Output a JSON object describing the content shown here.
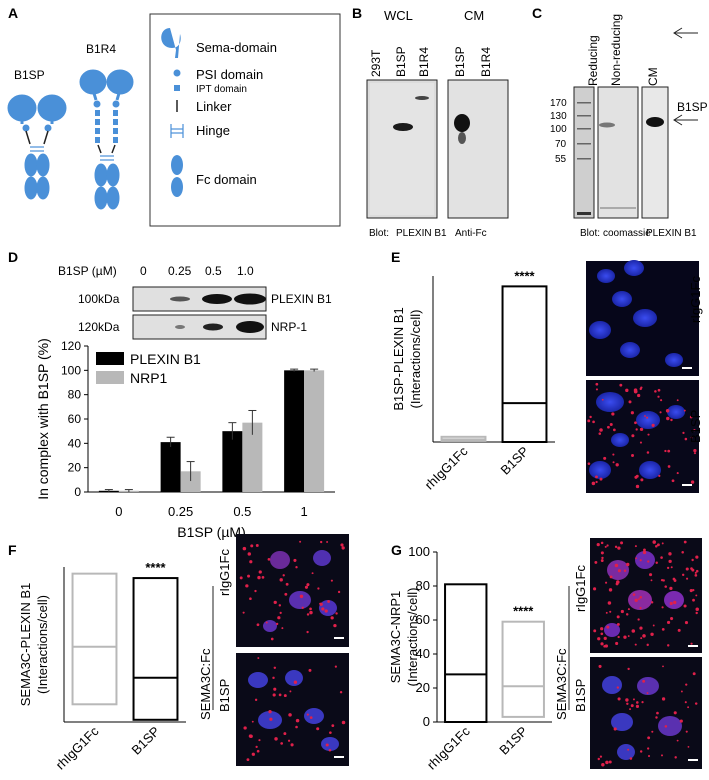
{
  "panel_labels": {
    "a": "A",
    "b": "B",
    "c": "C",
    "d": "D",
    "e": "E",
    "f": "F",
    "g": "G"
  },
  "colors": {
    "protein_blue": "#4a90d8",
    "nucleus_blue": "#2a38d8",
    "pla_red": "#e0204a",
    "black": "#000000",
    "grey": "#b8b8b8"
  },
  "panel_a": {
    "b1sp_label": "B1SP",
    "b1r4_label": "B1R4",
    "legend": [
      {
        "icon": "sema-icon",
        "label": "Sema-domain"
      },
      {
        "icon": "psi-icon",
        "label": "PSI domain"
      },
      {
        "icon": "ipt-icon",
        "label": "IPT domain"
      },
      {
        "icon": "linker-icon",
        "label": "Linker"
      },
      {
        "icon": "hinge-icon",
        "label": "Hinge"
      },
      {
        "icon": "fc-icon",
        "label": "Fc domain"
      }
    ]
  },
  "panel_b": {
    "wcl": "WCL",
    "cm": "CM",
    "lanes_wcl": [
      "293T",
      "B1SP",
      "B1R4"
    ],
    "lanes_cm": [
      "B1SP",
      "B1R4"
    ],
    "blot_prefix": "Blot:",
    "blot1": "PLEXIN B1",
    "blot2": "Anti-Fc"
  },
  "panel_c": {
    "markers": [
      "170",
      "130",
      "100",
      "70",
      "55"
    ],
    "lanes": [
      "Reducing",
      "Non-reducing",
      "CM"
    ],
    "arrow_label": "B1SP",
    "blot_prefix": "Blot:",
    "blot1": "coomassie",
    "blot2": "PLEXIN B1"
  },
  "panel_d": {
    "conc_label": "B1SP (µM)",
    "concs": [
      "0",
      "0.25",
      "0.5",
      "1.0"
    ],
    "blot_rows": [
      {
        "mw": "100kDa",
        "name": "PLEXIN B1"
      },
      {
        "mw": "120kDa",
        "name": "NRP-1"
      }
    ]
  },
  "chart_data": [
    {
      "type": "bar",
      "title": "",
      "xlabel": "B1SP (µM)",
      "ylabel": "In complex with B1SP (%)",
      "categories": [
        "0",
        "0.25",
        "0.5",
        "1"
      ],
      "ylim": [
        0,
        120
      ],
      "yticks": [
        "0",
        "20",
        "40",
        "60",
        "80",
        "100",
        "120"
      ],
      "legend_position": "top-left",
      "series": [
        {
          "name": "PLEXIN B1",
          "color": "#000000",
          "values": [
            1,
            41,
            50,
            100
          ],
          "errors": [
            1,
            4,
            7,
            1
          ]
        },
        {
          "name": "NRP1",
          "color": "#b8b8b8",
          "values": [
            1,
            17,
            57,
            100
          ],
          "errors": [
            1,
            8,
            10,
            1
          ]
        }
      ]
    },
    {
      "type": "box",
      "panel": "E",
      "ylabel": "B1SP-PLEXIN B1",
      "ylabel2": "(Interactions/cell)",
      "categories": [
        "rhIgG1Fc",
        "B1SP"
      ],
      "significance": "****",
      "boxes": [
        {
          "name": "rhIgG1Fc",
          "min": 0.2,
          "median": 0.5,
          "max": 1.0,
          "color": "#b8b8b8"
        },
        {
          "name": "B1SP",
          "min": 0,
          "median": 7.5,
          "max": 30,
          "color": "#000000"
        }
      ],
      "ylim": [
        0,
        32
      ]
    },
    {
      "type": "box",
      "panel": "F",
      "ylabel": "SEMA3C-PLEXIN B1",
      "ylabel2": "(Interactions/cell)",
      "categories": [
        "rhIgG1Fc",
        "B1SP"
      ],
      "significance": "****",
      "boxes": [
        {
          "name": "rhIgG1Fc",
          "min": 8,
          "median": 34,
          "max": 67,
          "color": "#b8b8b8"
        },
        {
          "name": "B1SP",
          "min": 1,
          "median": 20,
          "max": 65,
          "color": "#000000"
        }
      ],
      "ylim": [
        0,
        70
      ]
    },
    {
      "type": "box",
      "panel": "G",
      "ylabel": "SEMA3C-NRP1",
      "ylabel2": "(Interactions/cell)",
      "categories": [
        "rhIgG1Fc",
        "B1SP"
      ],
      "significance": "****",
      "yticks": [
        "0",
        "20",
        "40",
        "60",
        "80",
        "100"
      ],
      "boxes": [
        {
          "name": "rhIgG1Fc",
          "min": 0,
          "median": 28,
          "max": 81,
          "color": "#000000"
        },
        {
          "name": "B1SP",
          "min": 3,
          "median": 21,
          "max": 59,
          "color": "#b8b8b8"
        }
      ],
      "ylim": [
        0,
        100
      ]
    }
  ],
  "micro": {
    "rlg_label": "rIgG1Fc",
    "b1sp_label": "B1SP",
    "sema_label": "SEMA3C:Fc"
  }
}
